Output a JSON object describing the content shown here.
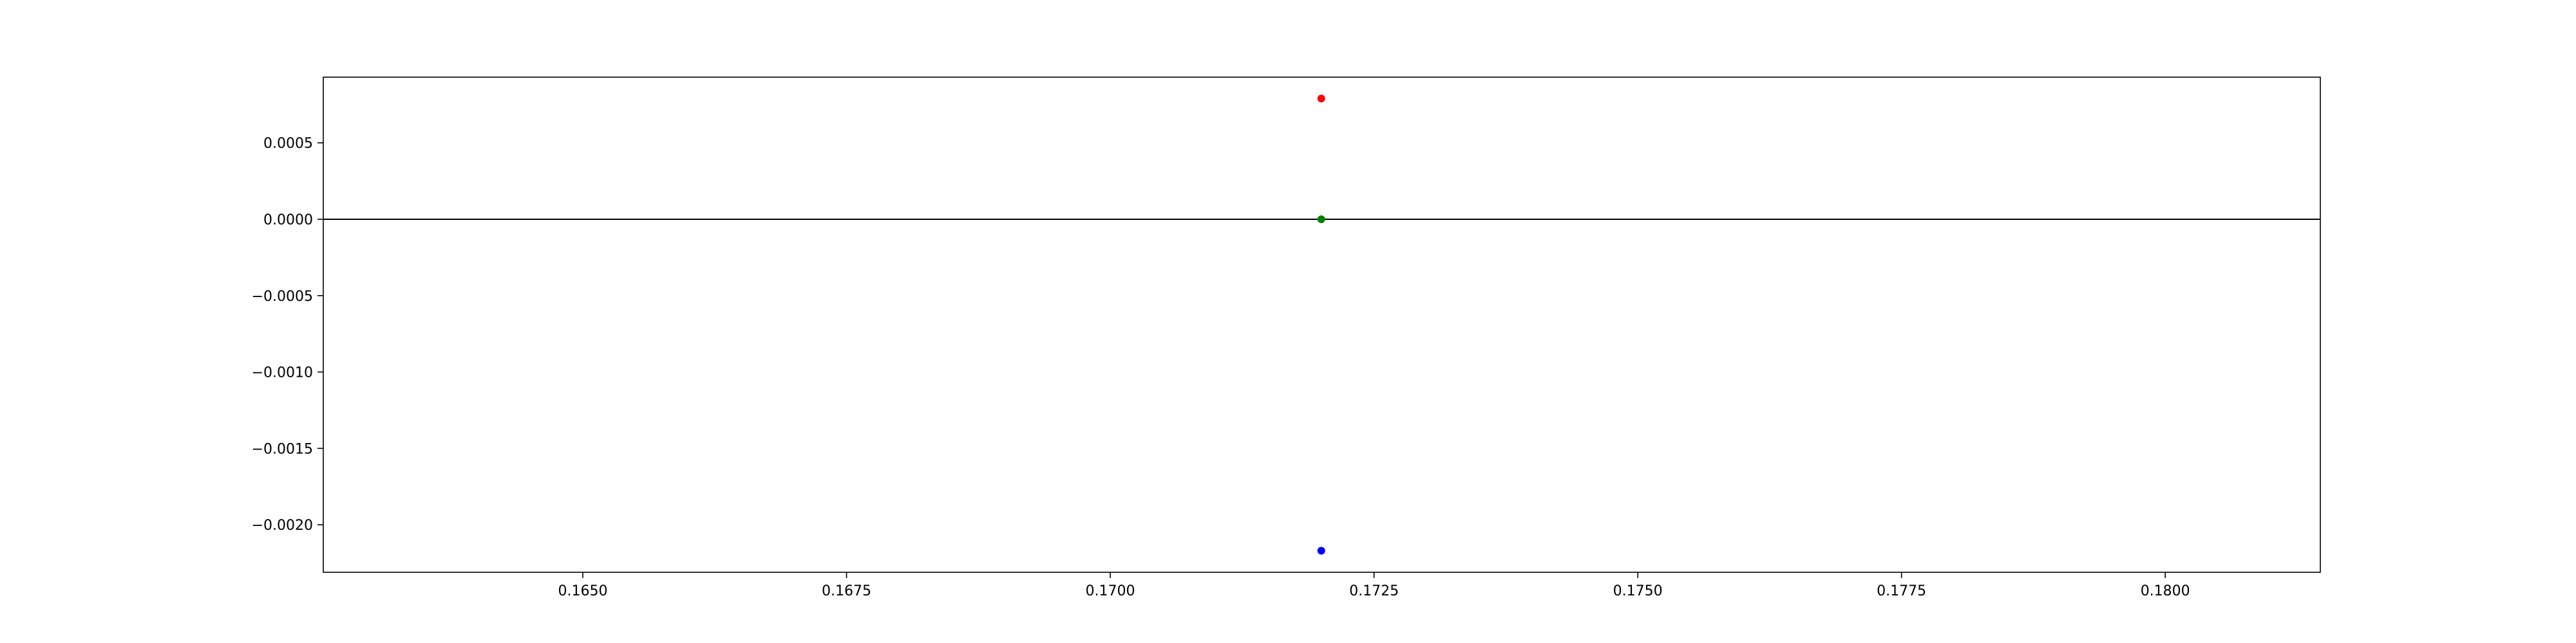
{
  "chart_data": {
    "type": "scatter",
    "title": "",
    "xlabel": "",
    "ylabel": "",
    "xlim": [
      0.16254,
      0.18147
    ],
    "ylim": [
      -0.0023108,
      0.00093
    ],
    "grid": false,
    "legend": "none",
    "x_ticks": [
      0.165,
      0.1675,
      0.17,
      0.1725,
      0.175,
      0.1775,
      0.18
    ],
    "x_tick_labels": [
      "0.1650",
      "0.1675",
      "0.1700",
      "0.1725",
      "0.1750",
      "0.1775",
      "0.1800"
    ],
    "y_ticks": [
      0.0005,
      0.0,
      -0.0005,
      -0.001,
      -0.0015,
      -0.002
    ],
    "y_tick_labels": [
      "0.0005",
      "0.0000",
      "−0.0005",
      "−0.0010",
      "−0.0015",
      "−0.0020"
    ],
    "reference_line": {
      "y": 0.0,
      "color": "#000000"
    },
    "points": [
      {
        "x": 0.172,
        "y": 0.00079,
        "color": "#ff0000"
      },
      {
        "x": 0.172,
        "y": 0.0,
        "color": "#008000"
      },
      {
        "x": 0.172,
        "y": -0.00217,
        "color": "#0000ff"
      }
    ]
  }
}
